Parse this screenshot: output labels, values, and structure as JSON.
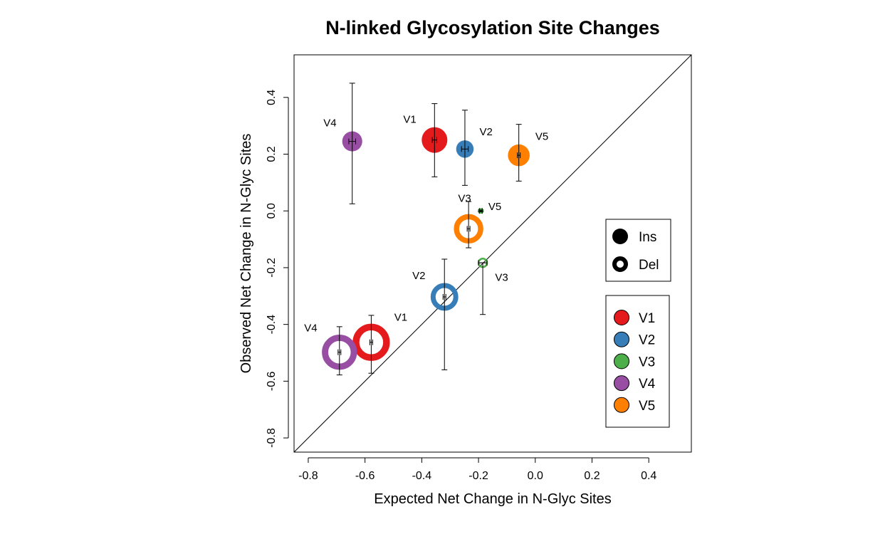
{
  "chart_data": {
    "type": "scatter",
    "title": "N-linked Glycosylation Site Changes",
    "xlabel": "Expected Net Change in N-Glyc Sites",
    "ylabel": "Observed Net Change in N-Glyc Sites",
    "xlim": [
      -0.85,
      0.55
    ],
    "ylim": [
      -0.85,
      0.55
    ],
    "xticks": [
      -0.8,
      -0.6,
      -0.4,
      -0.2,
      0.0,
      0.2,
      0.4
    ],
    "yticks": [
      -0.8,
      -0.6,
      -0.4,
      -0.2,
      0.0,
      0.2,
      0.4
    ],
    "xtick_labels": [
      "-0.8",
      "-0.6",
      "-0.4",
      "-0.2",
      "0.0",
      "0.2",
      "0.4"
    ],
    "ytick_labels": [
      "-0.8",
      "-0.6",
      "-0.4",
      "-0.2",
      "0.0",
      "0.2",
      "0.4"
    ],
    "reference_line": "y = x",
    "grid": false,
    "colors": {
      "V1": "#e41a1c",
      "V2": "#377eb8",
      "V3": "#4daf4a",
      "V4": "#984ea3",
      "V5": "#ff7f00"
    },
    "points": [
      {
        "label": "V1",
        "kind": "Ins",
        "x": -0.355,
        "y": 0.25,
        "y_low": 0.12,
        "y_high": 0.378,
        "x_err": 0.008,
        "size": 1.0,
        "label_side": "upper-left"
      },
      {
        "label": "V2",
        "kind": "Ins",
        "x": -0.248,
        "y": 0.218,
        "y_low": 0.09,
        "y_high": 0.355,
        "x_err": 0.012,
        "size": 0.68,
        "label_side": "upper-right"
      },
      {
        "label": "V4",
        "kind": "Ins",
        "x": -0.645,
        "y": 0.245,
        "y_low": 0.025,
        "y_high": 0.45,
        "x_err": 0.012,
        "size": 0.78,
        "label_side": "upper-left"
      },
      {
        "label": "V5",
        "kind": "Ins",
        "x": -0.058,
        "y": 0.196,
        "y_low": 0.105,
        "y_high": 0.305,
        "x_err": 0.005,
        "size": 0.85,
        "label_side": "upper-right"
      },
      {
        "label": "V3",
        "kind": "Ins",
        "x": -0.192,
        "y": 0.0,
        "y_low": -0.003,
        "y_high": 0.003,
        "x_err": 0.005,
        "size": 0.22,
        "label_side": "upper-left"
      },
      {
        "label": "V5",
        "kind": "Del",
        "x": -0.235,
        "y": -0.063,
        "y_low": -0.13,
        "y_high": 0.033,
        "x_err": 0.005,
        "size": 1.15,
        "label_side": "upper-right"
      },
      {
        "label": "V3",
        "kind": "Del",
        "x": -0.185,
        "y": -0.183,
        "y_low": -0.365,
        "y_high": -0.183,
        "x_err": 0.015,
        "size": 0.4,
        "label_side": "lower-right"
      },
      {
        "label": "V2",
        "kind": "Del",
        "x": -0.32,
        "y": -0.303,
        "y_low": -0.56,
        "y_high": -0.17,
        "x_err": 0.005,
        "size": 1.08,
        "label_side": "upper-left"
      },
      {
        "label": "V1",
        "kind": "Del",
        "x": -0.578,
        "y": -0.463,
        "y_low": -0.572,
        "y_high": -0.368,
        "x_err": 0.005,
        "size": 1.45,
        "label_side": "upper-right"
      },
      {
        "label": "V4",
        "kind": "Del",
        "x": -0.69,
        "y": -0.498,
        "y_low": -0.578,
        "y_high": -0.408,
        "x_err": 0.005,
        "size": 1.37,
        "label_side": "upper-left"
      }
    ],
    "legend_kind": [
      {
        "label": "Ins",
        "kind": "Ins"
      },
      {
        "label": "Del",
        "kind": "Del"
      }
    ],
    "legend_color": [
      "V1",
      "V2",
      "V3",
      "V4",
      "V5"
    ],
    "legend_placement": "right"
  }
}
